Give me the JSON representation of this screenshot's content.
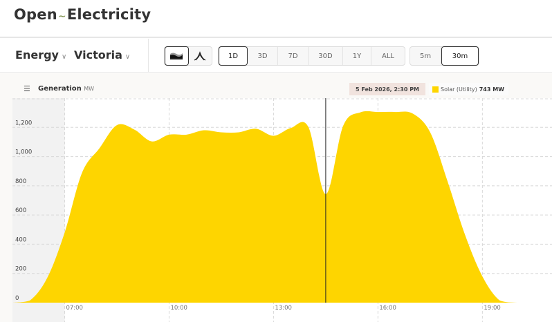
{
  "header": {
    "logo_left": "Open",
    "logo_right": "Electricity"
  },
  "toolbar": {
    "metric": "Energy",
    "region": "Victoria",
    "chart_types": [
      {
        "name": "stacked-area-icon",
        "active": true
      },
      {
        "name": "line-chart-icon",
        "active": false
      }
    ],
    "ranges": [
      {
        "label": "1D",
        "active": true
      },
      {
        "label": "3D",
        "active": false
      },
      {
        "label": "7D",
        "active": false
      },
      {
        "label": "30D",
        "active": false
      },
      {
        "label": "1Y",
        "active": false
      },
      {
        "label": "ALL",
        "active": false
      }
    ],
    "intervals": [
      {
        "label": "5m",
        "active": false
      },
      {
        "label": "30m",
        "active": true
      }
    ]
  },
  "chart_header": {
    "title": "Generation",
    "unit": "MW",
    "tooltip_date": "5 Feb 2026, 2:30 PM",
    "legend_label": "Solar (Utility)",
    "legend_value": "743 MW"
  },
  "chart_data": {
    "type": "area",
    "title": "Generation",
    "ylabel": "MW",
    "ylim": [
      0,
      1400
    ],
    "xlim": [
      "05:30",
      "21:00"
    ],
    "grid": true,
    "y_ticks": [
      "0",
      "200",
      "400",
      "600",
      "800",
      "1,000",
      "1,200"
    ],
    "y_tick_values": [
      0,
      200,
      400,
      600,
      800,
      1000,
      1200
    ],
    "x_ticks": [
      "07:00",
      "10:00",
      "13:00",
      "16:00",
      "19:00"
    ],
    "shaded_until": "07:00",
    "cursor": "14:30",
    "colors": {
      "solar": "#fed500"
    },
    "series": [
      {
        "name": "Solar (Utility)",
        "x": [
          "05:30",
          "06:00",
          "06:30",
          "07:00",
          "07:30",
          "08:00",
          "08:30",
          "09:00",
          "09:30",
          "10:00",
          "10:30",
          "11:00",
          "11:30",
          "12:00",
          "12:30",
          "13:00",
          "13:30",
          "14:00",
          "14:30",
          "15:00",
          "15:30",
          "16:00",
          "16:30",
          "17:00",
          "17:30",
          "18:00",
          "18:30",
          "19:00",
          "19:30",
          "20:00",
          "20:30",
          "21:00"
        ],
        "values": [
          0,
          15,
          170,
          480,
          890,
          1057,
          1215,
          1185,
          1104,
          1150,
          1150,
          1180,
          1166,
          1166,
          1190,
          1142,
          1196,
          1203,
          743,
          1210,
          1303,
          1305,
          1305,
          1294,
          1166,
          830,
          465,
          180,
          15,
          0,
          0,
          0
        ]
      }
    ]
  }
}
